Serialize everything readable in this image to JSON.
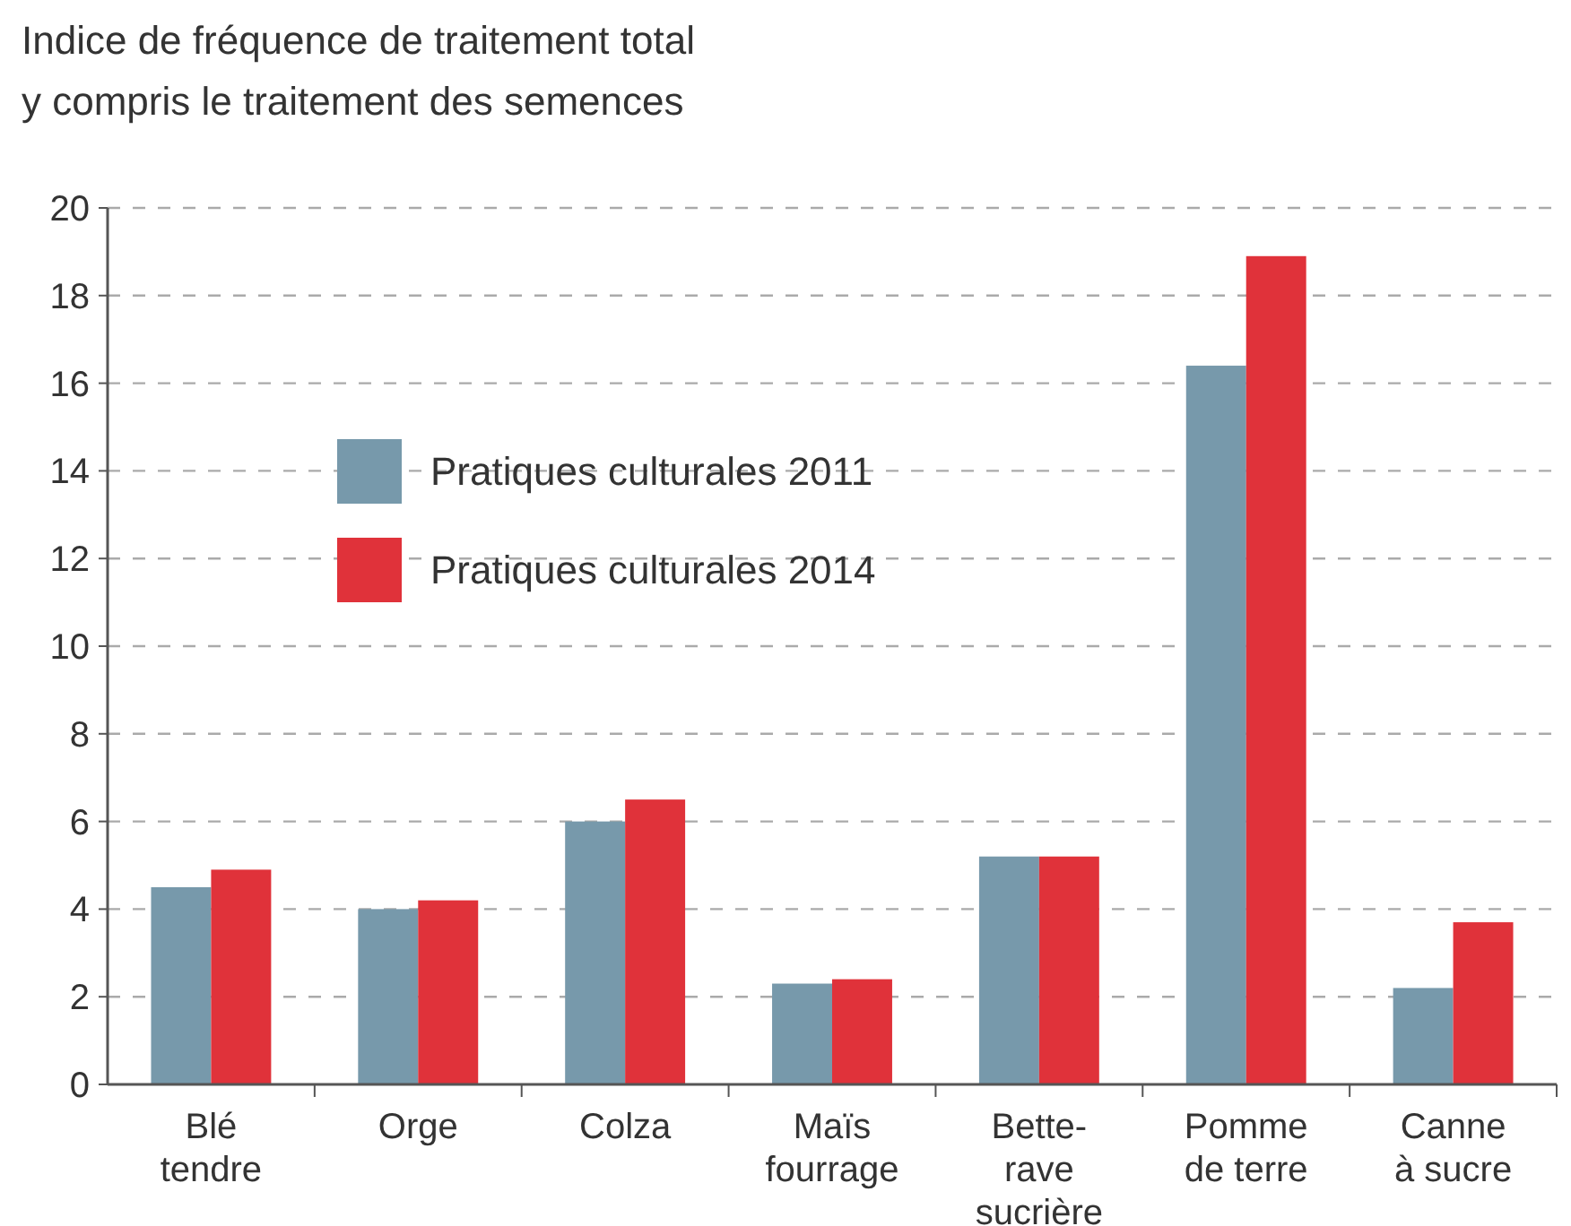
{
  "chart_data": {
    "type": "bar",
    "title": "Indice de fréquence de traitement total\ny compris le traitement des semences",
    "categories": [
      "Blé\ntendre",
      "Orge",
      "Colza",
      "Maïs\nfourrage",
      "Bette-\nrave\nsucrière",
      "Pomme\nde terre",
      "Canne\nà sucre"
    ],
    "series": [
      {
        "name": "Pratiques culturales 2011",
        "color": "#7799ab",
        "values": [
          4.5,
          4.0,
          6.0,
          2.3,
          5.2,
          16.4,
          2.2
        ]
      },
      {
        "name": "Pratiques culturales 2014",
        "color": "#e0323a",
        "values": [
          4.9,
          4.2,
          6.5,
          2.4,
          5.2,
          18.9,
          3.7
        ]
      }
    ],
    "ylim": [
      0,
      20
    ],
    "yticks": [
      0,
      2,
      4,
      6,
      8,
      10,
      12,
      14,
      16,
      18,
      20
    ],
    "grid": "y",
    "legend": "top left"
  }
}
